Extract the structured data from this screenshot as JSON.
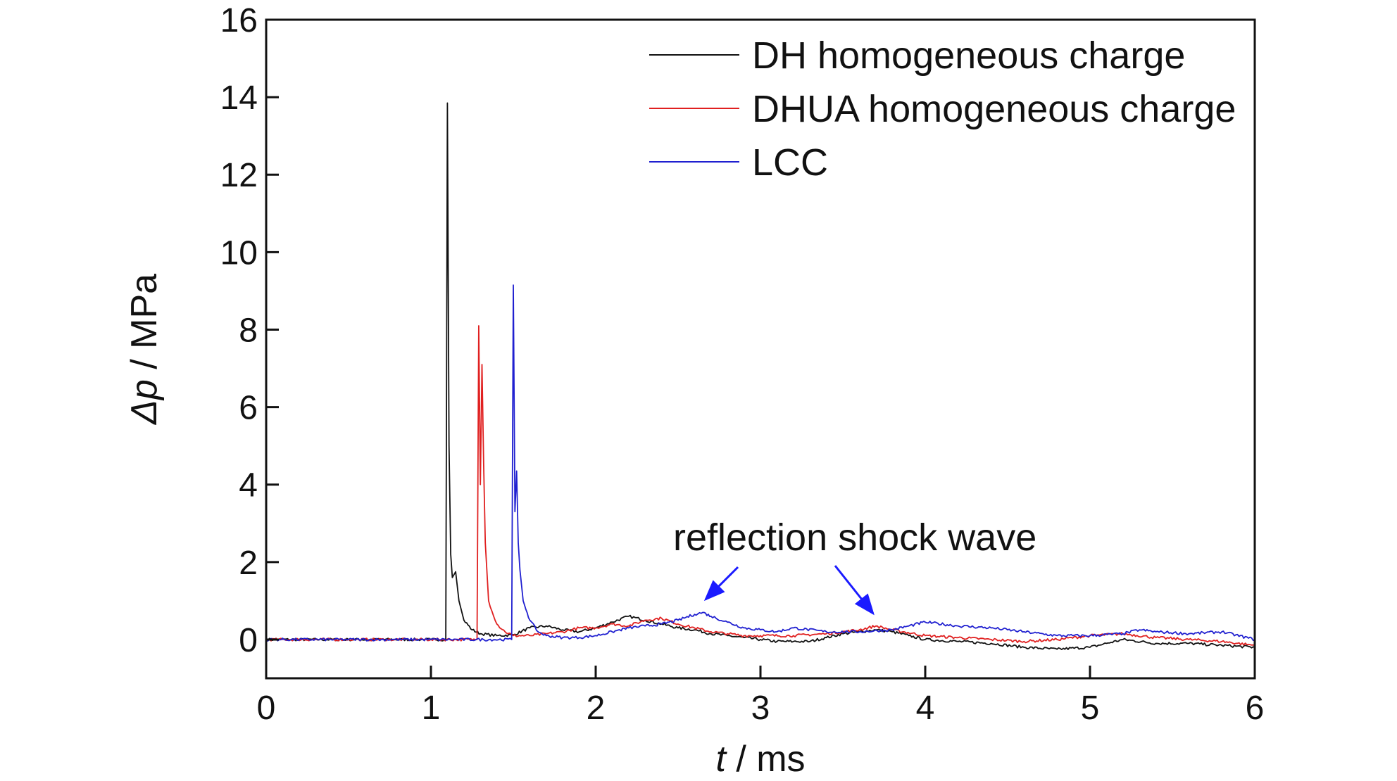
{
  "chart_data": {
    "type": "line",
    "xlabel_var": "t",
    "xlabel_unit": " / ms",
    "ylabel_var": "Δp",
    "ylabel_unit": " / MPa",
    "xlim": [
      0,
      6
    ],
    "ylim": [
      -1,
      16
    ],
    "xticks": [
      0,
      1,
      2,
      3,
      4,
      5,
      6
    ],
    "yticks": [
      0,
      2,
      4,
      6,
      8,
      10,
      12,
      14,
      16
    ],
    "grid": false,
    "legend_position": "top-right",
    "annotation": "reflection shock wave",
    "series": [
      {
        "name": "DH homogeneous charge",
        "color": "#111111",
        "x": [
          0,
          0.5,
          1.0,
          1.09,
          1.1,
          1.11,
          1.12,
          1.13,
          1.15,
          1.17,
          1.2,
          1.25,
          1.3,
          1.4,
          1.5,
          1.6,
          1.7,
          1.8,
          1.9,
          2.0,
          2.1,
          2.2,
          2.3,
          2.4,
          2.5,
          2.6,
          2.7,
          2.8,
          2.9,
          3.0,
          3.1,
          3.2,
          3.3,
          3.4,
          3.5,
          3.6,
          3.7,
          3.8,
          3.9,
          4.0,
          4.2,
          4.4,
          4.6,
          4.8,
          5.0,
          5.1,
          5.2,
          5.4,
          5.6,
          5.8,
          6.0
        ],
        "y": [
          0,
          0,
          0,
          0,
          13.85,
          5.0,
          2.2,
          1.6,
          1.75,
          1.0,
          0.5,
          0.25,
          0.15,
          0.1,
          0.12,
          0.3,
          0.35,
          0.25,
          0.2,
          0.3,
          0.45,
          0.6,
          0.5,
          0.4,
          0.3,
          0.25,
          0.15,
          0.1,
          0.05,
          0.0,
          -0.05,
          -0.05,
          -0.05,
          0.05,
          0.15,
          0.2,
          0.25,
          0.2,
          0.1,
          0.0,
          -0.05,
          -0.1,
          -0.2,
          -0.25,
          -0.2,
          -0.1,
          0.0,
          -0.1,
          -0.1,
          -0.15,
          -0.2
        ]
      },
      {
        "name": "DHUA homogeneous charge",
        "color": "#e02020",
        "x": [
          0,
          0.5,
          1.0,
          1.28,
          1.29,
          1.3,
          1.31,
          1.32,
          1.33,
          1.35,
          1.4,
          1.45,
          1.5,
          1.6,
          1.7,
          1.8,
          1.9,
          2.0,
          2.1,
          2.2,
          2.3,
          2.4,
          2.5,
          2.6,
          2.7,
          2.8,
          2.9,
          3.0,
          3.2,
          3.4,
          3.6,
          3.7,
          3.8,
          4.0,
          4.2,
          4.4,
          4.6,
          4.8,
          5.0,
          5.2,
          5.4,
          5.6,
          5.8,
          6.0
        ],
        "y": [
          0,
          0,
          0,
          0,
          8.1,
          4.0,
          7.1,
          4.5,
          2.5,
          1.0,
          0.4,
          0.2,
          0.1,
          0.1,
          0.15,
          0.2,
          0.3,
          0.3,
          0.4,
          0.35,
          0.5,
          0.55,
          0.4,
          0.3,
          0.2,
          0.15,
          0.1,
          0.1,
          0.1,
          0.15,
          0.25,
          0.35,
          0.25,
          0.1,
          0.05,
          0.0,
          -0.05,
          0.0,
          0.1,
          0.15,
          0.05,
          0.0,
          -0.05,
          -0.15
        ]
      },
      {
        "name": "LCC",
        "color": "#2020d0",
        "x": [
          0,
          0.5,
          1.0,
          1.49,
          1.5,
          1.51,
          1.52,
          1.53,
          1.54,
          1.56,
          1.6,
          1.65,
          1.7,
          1.8,
          1.9,
          2.0,
          2.1,
          2.2,
          2.3,
          2.4,
          2.5,
          2.6,
          2.65,
          2.7,
          2.8,
          2.9,
          3.0,
          3.1,
          3.2,
          3.4,
          3.6,
          3.8,
          3.9,
          4.0,
          4.2,
          4.4,
          4.6,
          4.8,
          5.0,
          5.2,
          5.3,
          5.4,
          5.6,
          5.8,
          6.0
        ],
        "y": [
          0,
          0,
          0,
          0,
          9.15,
          3.3,
          4.35,
          2.5,
          1.8,
          1.0,
          0.5,
          0.2,
          0.1,
          0.05,
          0.05,
          0.1,
          0.2,
          0.3,
          0.35,
          0.4,
          0.5,
          0.65,
          0.7,
          0.6,
          0.45,
          0.3,
          0.25,
          0.2,
          0.3,
          0.2,
          0.2,
          0.25,
          0.35,
          0.45,
          0.35,
          0.3,
          0.2,
          0.1,
          0.1,
          0.15,
          0.25,
          0.2,
          0.15,
          0.2,
          0.0
        ]
      }
    ]
  }
}
